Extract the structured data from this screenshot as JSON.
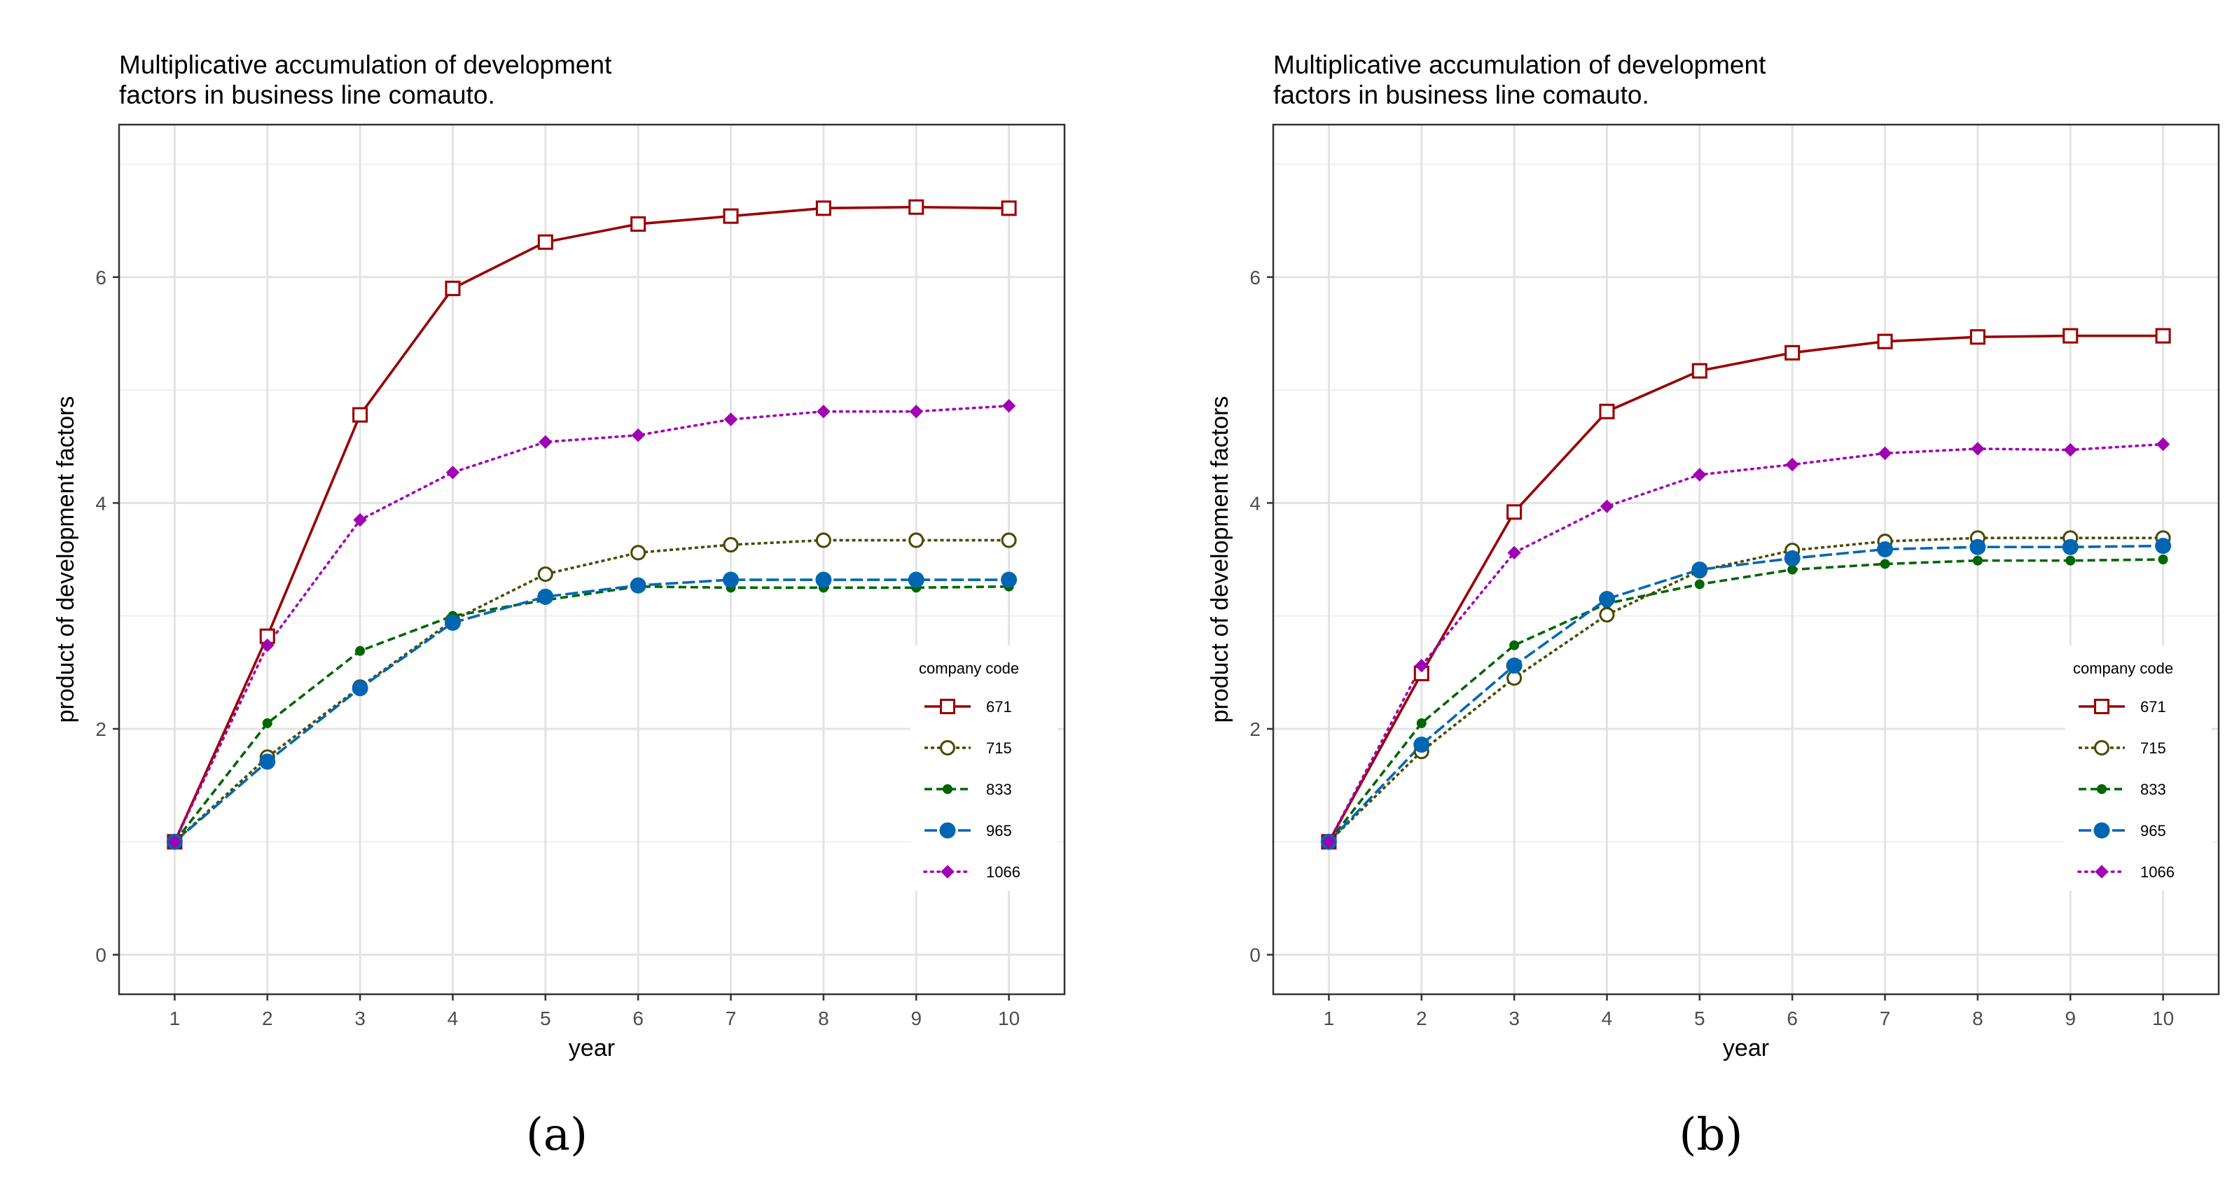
{
  "chart_data": [
    {
      "type": "line",
      "panel_label": "(a)",
      "title": [
        "Multiplicative accumulation of development",
        " factors in business line comauto."
      ],
      "xlabel": "year",
      "ylabel": "product of development factors",
      "xlim": [
        0.4,
        10.6
      ],
      "ylim": [
        -0.35,
        7.35
      ],
      "x_ticks": [
        "1",
        "2",
        "3",
        "4",
        "5",
        "6",
        "7",
        "8",
        "9",
        "10"
      ],
      "y_ticks": [
        "0",
        "2",
        "4",
        "6"
      ],
      "grid": true,
      "legend": {
        "title": "company code",
        "placement": "right"
      },
      "x": [
        1,
        2,
        3,
        4,
        5,
        6,
        7,
        8,
        9,
        10
      ],
      "series": [
        {
          "name": "671",
          "color": "#990000",
          "values": [
            1.0,
            2.82,
            4.78,
            5.9,
            6.31,
            6.47,
            6.54,
            6.61,
            6.62,
            6.61
          ]
        },
        {
          "name": "715",
          "color": "#4a4a00",
          "values": [
            1.0,
            1.75,
            2.37,
            2.96,
            3.37,
            3.56,
            3.63,
            3.67,
            3.67,
            3.67
          ]
        },
        {
          "name": "833",
          "color": "#006600",
          "values": [
            1.0,
            2.05,
            2.69,
            3.0,
            3.14,
            3.26,
            3.25,
            3.25,
            3.25,
            3.26
          ]
        },
        {
          "name": "965",
          "color": "#0066b3",
          "values": [
            1.0,
            1.71,
            2.36,
            2.94,
            3.17,
            3.27,
            3.32,
            3.32,
            3.32,
            3.32
          ]
        },
        {
          "name": "1066",
          "color": "#a000b3",
          "values": [
            1.0,
            2.74,
            3.85,
            4.27,
            4.54,
            4.6,
            4.74,
            4.81,
            4.81,
            4.86
          ]
        }
      ]
    },
    {
      "type": "line",
      "panel_label": "(b)",
      "title": [
        "Multiplicative accumulation of development",
        " factors in business line comauto."
      ],
      "xlabel": "year",
      "ylabel": "product of development factors",
      "xlim": [
        0.4,
        10.6
      ],
      "ylim": [
        -0.35,
        7.35
      ],
      "x_ticks": [
        "1",
        "2",
        "3",
        "4",
        "5",
        "6",
        "7",
        "8",
        "9",
        "10"
      ],
      "y_ticks": [
        "0",
        "2",
        "4",
        "6"
      ],
      "grid": true,
      "legend": {
        "title": "company code",
        "placement": "right"
      },
      "x": [
        1,
        2,
        3,
        4,
        5,
        6,
        7,
        8,
        9,
        10
      ],
      "series": [
        {
          "name": "671",
          "color": "#990000",
          "values": [
            1.0,
            2.49,
            3.92,
            4.81,
            5.17,
            5.33,
            5.43,
            5.47,
            5.48,
            5.48
          ]
        },
        {
          "name": "715",
          "color": "#4a4a00",
          "values": [
            1.0,
            1.8,
            2.45,
            3.01,
            3.4,
            3.58,
            3.66,
            3.69,
            3.69,
            3.69
          ]
        },
        {
          "name": "833",
          "color": "#006600",
          "values": [
            1.0,
            2.05,
            2.74,
            3.11,
            3.28,
            3.41,
            3.46,
            3.49,
            3.49,
            3.5
          ]
        },
        {
          "name": "965",
          "color": "#0066b3",
          "values": [
            1.0,
            1.86,
            2.56,
            3.15,
            3.41,
            3.51,
            3.59,
            3.61,
            3.61,
            3.62
          ]
        },
        {
          "name": "1066",
          "color": "#a000b3",
          "values": [
            1.0,
            2.56,
            3.56,
            3.97,
            4.25,
            4.34,
            4.44,
            4.48,
            4.47,
            4.52
          ]
        }
      ]
    }
  ]
}
